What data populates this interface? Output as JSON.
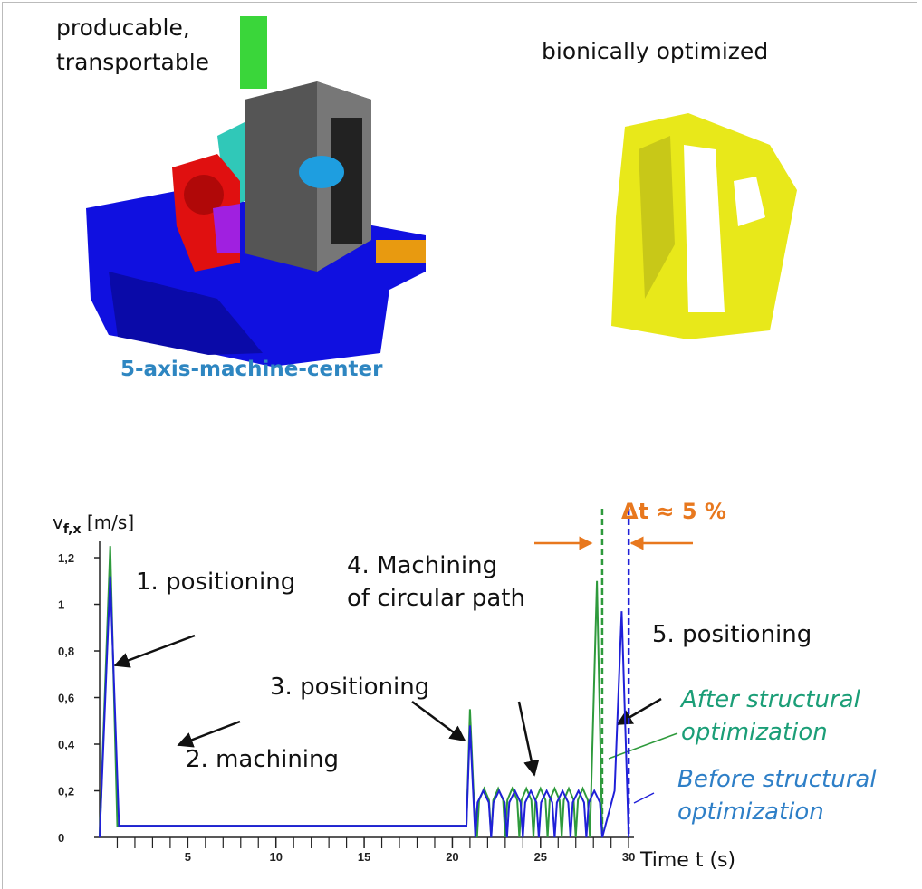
{
  "header": {
    "left_label": "producable, transportable",
    "right_label": "bionically optimized",
    "caption": "5-axis-machine-center"
  },
  "chart_data": {
    "type": "line",
    "ylabel": {
      "symbol": "v",
      "subscript": "f,x",
      "unit": "[m/s]"
    },
    "xlabel": "Time t (s)",
    "xlim": [
      0,
      30.3
    ],
    "ylim": [
      0,
      1.27
    ],
    "xticks": [
      5,
      10,
      15,
      20,
      25,
      30
    ],
    "xminorticks": [
      1,
      2,
      3,
      4,
      6,
      7,
      8,
      9,
      11,
      12,
      13,
      14,
      16,
      17,
      18,
      19,
      21,
      22,
      23,
      24,
      26,
      27,
      28,
      29
    ],
    "yticks": [
      0,
      {
        "value": 0.2,
        "label": "0,2"
      },
      {
        "value": 0.4,
        "label": "0,4"
      },
      {
        "value": 0.6,
        "label": "0,6"
      },
      {
        "value": 0.8,
        "label": "0,8"
      },
      1,
      {
        "value": 1.2,
        "label": "1,2"
      }
    ],
    "series": [
      {
        "name": "After structural optimization",
        "color": "#2e9a3c",
        "x": [
          0,
          0.6,
          1.0,
          20.8,
          21.0,
          21.2,
          21.4,
          21.52,
          21.8,
          22.08,
          22.2,
          22.32,
          22.6,
          22.88,
          23.0,
          23.12,
          23.4,
          23.68,
          23.8,
          23.92,
          24.2,
          24.48,
          24.6,
          24.72,
          25.0,
          25.28,
          25.4,
          25.52,
          25.8,
          26.08,
          26.2,
          26.32,
          26.6,
          26.88,
          27.0,
          27.12,
          27.4,
          27.68,
          27.8,
          28.2,
          28.5
        ],
        "values": [
          0,
          1.25,
          0.05,
          0.05,
          0.55,
          0.2,
          0,
          0.16,
          0.21,
          0.16,
          0,
          0.16,
          0.21,
          0.16,
          0,
          0.16,
          0.21,
          0.16,
          0,
          0.16,
          0.21,
          0.16,
          0,
          0.16,
          0.21,
          0.16,
          0,
          0.16,
          0.21,
          0.16,
          0,
          0.16,
          0.21,
          0.16,
          0,
          0.16,
          0.21,
          0.16,
          0,
          1.1,
          0
        ]
      },
      {
        "name": "Before structural optimization",
        "color": "#2020d8",
        "x": [
          0,
          0.6,
          1.1,
          20.8,
          21.0,
          21.3,
          21.43,
          21.75,
          22.07,
          22.2,
          22.33,
          22.65,
          22.97,
          23.1,
          23.23,
          23.55,
          23.87,
          24.0,
          24.13,
          24.45,
          24.77,
          24.9,
          25.03,
          25.35,
          25.67,
          25.8,
          25.93,
          26.25,
          26.57,
          26.7,
          26.83,
          27.15,
          27.47,
          27.6,
          27.73,
          28.05,
          28.37,
          28.5,
          29.2,
          29.6,
          30.0
        ],
        "values": [
          0,
          1.12,
          0.05,
          0.05,
          0.48,
          0,
          0.15,
          0.2,
          0.15,
          0,
          0.15,
          0.2,
          0.15,
          0,
          0.15,
          0.2,
          0.15,
          0,
          0.15,
          0.2,
          0.15,
          0,
          0.15,
          0.2,
          0.15,
          0,
          0.15,
          0.2,
          0.15,
          0,
          0.15,
          0.2,
          0.15,
          0,
          0.15,
          0.2,
          0.15,
          0,
          0.2,
          0.97,
          0
        ]
      }
    ],
    "vlines": [
      {
        "x": 28.5,
        "color": "#2e9a3c"
      },
      {
        "x": 30.0,
        "color": "#2020d8"
      }
    ],
    "delta_label": "Δt ≈ 5 %",
    "annotations": [
      {
        "lines": [
          "1. positioning"
        ]
      },
      {
        "lines": [
          "2. machining"
        ]
      },
      {
        "lines": [
          "3. positioning"
        ]
      },
      {
        "lines": [
          "4. Machining",
          "of circular path"
        ]
      },
      {
        "lines": [
          "5. positioning"
        ]
      }
    ]
  }
}
